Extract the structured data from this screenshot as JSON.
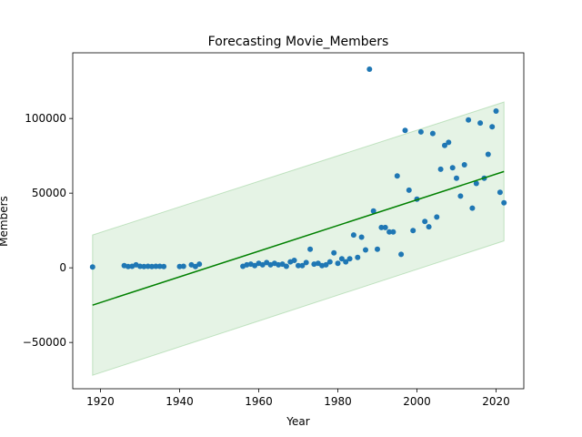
{
  "chart_data": {
    "type": "scatter",
    "title": "Forecasting Movie_Members",
    "xlabel": "Year",
    "ylabel": "Members",
    "xlim": [
      1913,
      2027
    ],
    "ylim": [
      -81000,
      144000
    ],
    "xticks": [
      1920,
      1940,
      1960,
      1980,
      2000,
      2020
    ],
    "yticks": [
      -50000,
      0,
      50000,
      100000
    ],
    "ytick_labels": [
      "−50000",
      "0",
      "50000",
      "100000"
    ],
    "grid": false,
    "legend": "none",
    "colors": {
      "points": "#1f77b4",
      "trend": "#008000",
      "band": "#2ca02c"
    },
    "trend_line": {
      "x": [
        1918,
        2022
      ],
      "y": [
        -25000,
        64500
      ]
    },
    "band": {
      "x": [
        1918,
        2022
      ],
      "lower": [
        -72000,
        18000
      ],
      "upper": [
        22000,
        111000
      ]
    },
    "points": [
      [
        1918,
        500
      ],
      [
        1926,
        1500
      ],
      [
        1927,
        800
      ],
      [
        1928,
        1000
      ],
      [
        1929,
        2000
      ],
      [
        1930,
        1000
      ],
      [
        1931,
        800
      ],
      [
        1932,
        1000
      ],
      [
        1933,
        800
      ],
      [
        1934,
        1000
      ],
      [
        1935,
        1000
      ],
      [
        1936,
        800
      ],
      [
        1940,
        800
      ],
      [
        1941,
        1000
      ],
      [
        1943,
        2000
      ],
      [
        1944,
        800
      ],
      [
        1945,
        2500
      ],
      [
        1956,
        1000
      ],
      [
        1957,
        2000
      ],
      [
        1958,
        2500
      ],
      [
        1959,
        1500
      ],
      [
        1960,
        3000
      ],
      [
        1961,
        2000
      ],
      [
        1962,
        3500
      ],
      [
        1963,
        2000
      ],
      [
        1964,
        3000
      ],
      [
        1965,
        2000
      ],
      [
        1966,
        2500
      ],
      [
        1967,
        1000
      ],
      [
        1968,
        4000
      ],
      [
        1969,
        5000
      ],
      [
        1970,
        1500
      ],
      [
        1971,
        1500
      ],
      [
        1972,
        3500
      ],
      [
        1973,
        12500
      ],
      [
        1974,
        2500
      ],
      [
        1975,
        3000
      ],
      [
        1976,
        1500
      ],
      [
        1977,
        2000
      ],
      [
        1978,
        4000
      ],
      [
        1979,
        10000
      ],
      [
        1980,
        3000
      ],
      [
        1981,
        6000
      ],
      [
        1982,
        4000
      ],
      [
        1983,
        6000
      ],
      [
        1984,
        22000
      ],
      [
        1985,
        7000
      ],
      [
        1986,
        20500
      ],
      [
        1987,
        12000
      ],
      [
        1988,
        133000
      ],
      [
        1989,
        38000
      ],
      [
        1990,
        12500
      ],
      [
        1991,
        27000
      ],
      [
        1992,
        27000
      ],
      [
        1993,
        24000
      ],
      [
        1994,
        24000
      ],
      [
        1995,
        61500
      ],
      [
        1996,
        9000
      ],
      [
        1997,
        92000
      ],
      [
        1998,
        52000
      ],
      [
        1999,
        25000
      ],
      [
        2000,
        46000
      ],
      [
        2001,
        91000
      ],
      [
        2002,
        31000
      ],
      [
        2003,
        27500
      ],
      [
        2004,
        90000
      ],
      [
        2005,
        34000
      ],
      [
        2006,
        66000
      ],
      [
        2007,
        82000
      ],
      [
        2008,
        84000
      ],
      [
        2009,
        67000
      ],
      [
        2010,
        60000
      ],
      [
        2011,
        48000
      ],
      [
        2012,
        69000
      ],
      [
        2013,
        99000
      ],
      [
        2014,
        40000
      ],
      [
        2015,
        56500
      ],
      [
        2016,
        97000
      ],
      [
        2017,
        60000
      ],
      [
        2018,
        76000
      ],
      [
        2019,
        94500
      ],
      [
        2020,
        105000
      ],
      [
        2021,
        50500
      ],
      [
        2022,
        43500
      ]
    ]
  }
}
